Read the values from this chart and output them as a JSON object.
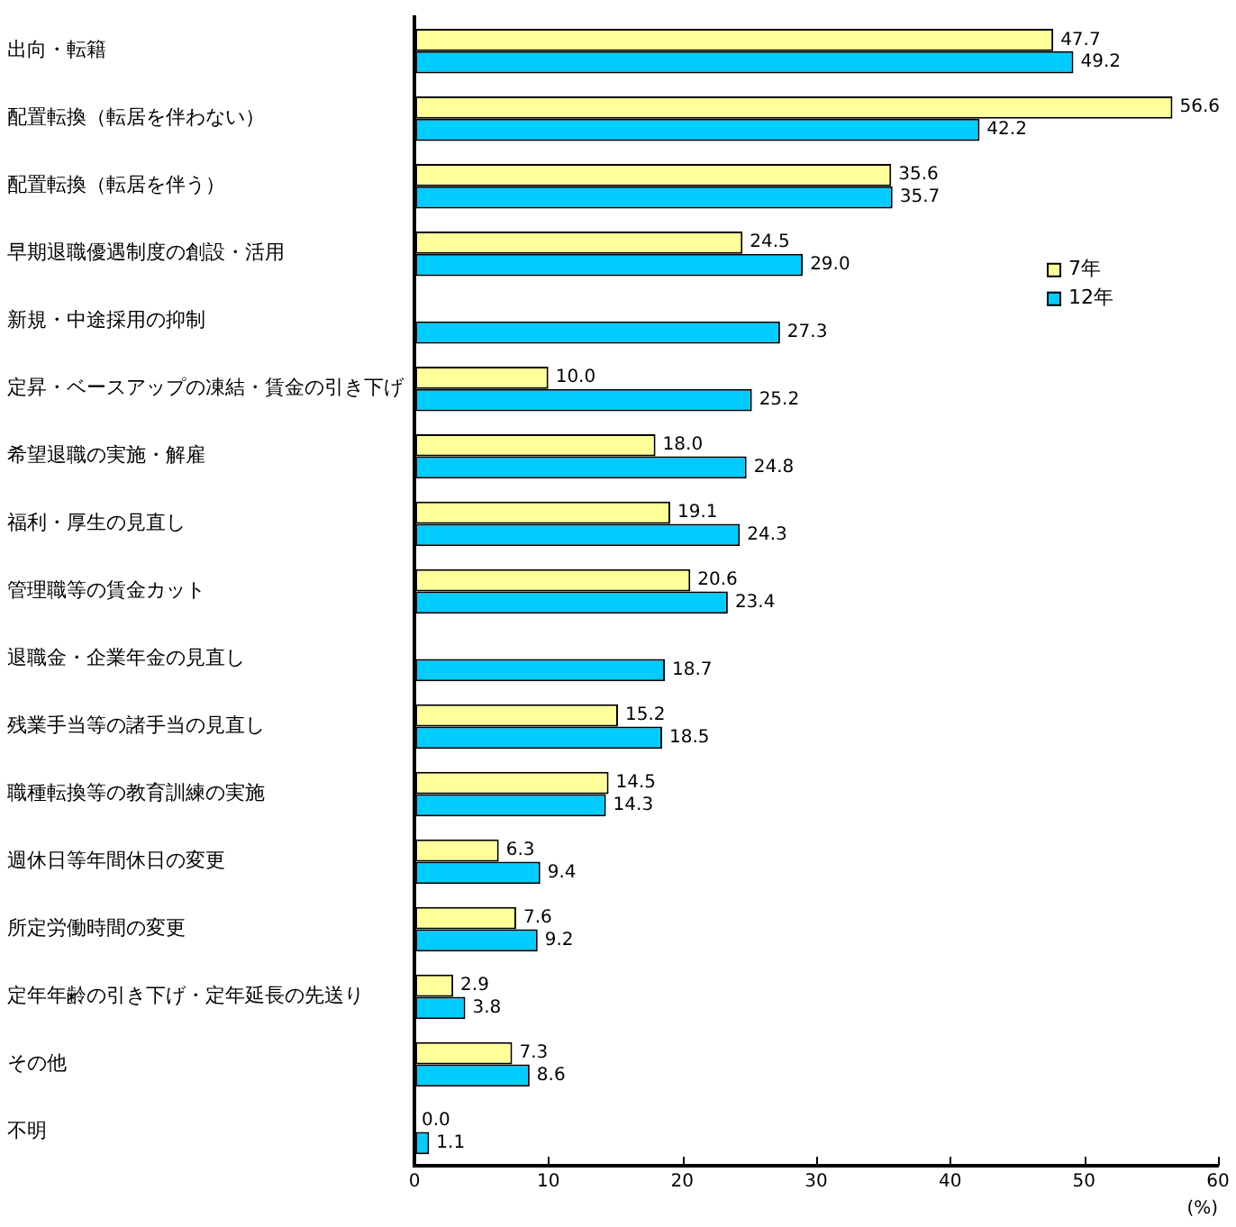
{
  "chart_data": {
    "type": "bar",
    "orientation": "horizontal",
    "xlabel": "(%)",
    "categories": [
      "出向・転籍",
      "配置転換（転居を伴わない）",
      "配置転換（転居を伴う）",
      "早期退職優遇制度の創設・活用",
      "新規・中途採用の抑制",
      "定昇・ベースアップの凍結・賃金の引き下げ",
      "希望退職の実施・解雇",
      "福利・厚生の見直し",
      "管理職等の賃金カット",
      "退職金・企業年金の見直し",
      "残業手当等の諸手当の見直し",
      "職種転換等の教育訓練の実施",
      "週休日等年間休日の変更",
      "所定労働時間の変更",
      "定年年齢の引き下げ・定年延長の先送り",
      "その他",
      "不明"
    ],
    "series": [
      {
        "name": "7年",
        "color": "#ffff99",
        "values": [
          47.7,
          56.6,
          35.6,
          24.5,
          null,
          10.0,
          18.0,
          19.1,
          20.6,
          null,
          15.2,
          14.5,
          6.3,
          7.6,
          2.9,
          7.3,
          0.0
        ],
        "value_labels": [
          "47.7",
          "56.6",
          "35.6",
          "24.5",
          null,
          "10.0",
          "18.0",
          "19.1",
          "20.6",
          null,
          "15.2",
          "14.5",
          "6.3",
          "7.6",
          "2.9",
          "7.3",
          "0.0"
        ]
      },
      {
        "name": "12年",
        "color": "#00ccff",
        "values": [
          49.2,
          42.2,
          35.7,
          29.0,
          27.3,
          25.2,
          24.8,
          24.3,
          23.4,
          18.7,
          18.5,
          14.3,
          9.4,
          9.2,
          3.8,
          8.6,
          1.1
        ],
        "value_labels": [
          "49.2",
          "42.2",
          "35.7",
          "29.0",
          "27.3",
          "25.2",
          "24.8",
          "24.3",
          "23.4",
          "18.7",
          "18.5",
          "14.3",
          "9.4",
          "9.2",
          "3.8",
          "8.6",
          "1.1"
        ]
      }
    ],
    "xlim": [
      0,
      60
    ],
    "xticks": [
      0,
      10,
      20,
      30,
      40,
      50,
      60
    ],
    "grid": false,
    "legend": "right"
  }
}
